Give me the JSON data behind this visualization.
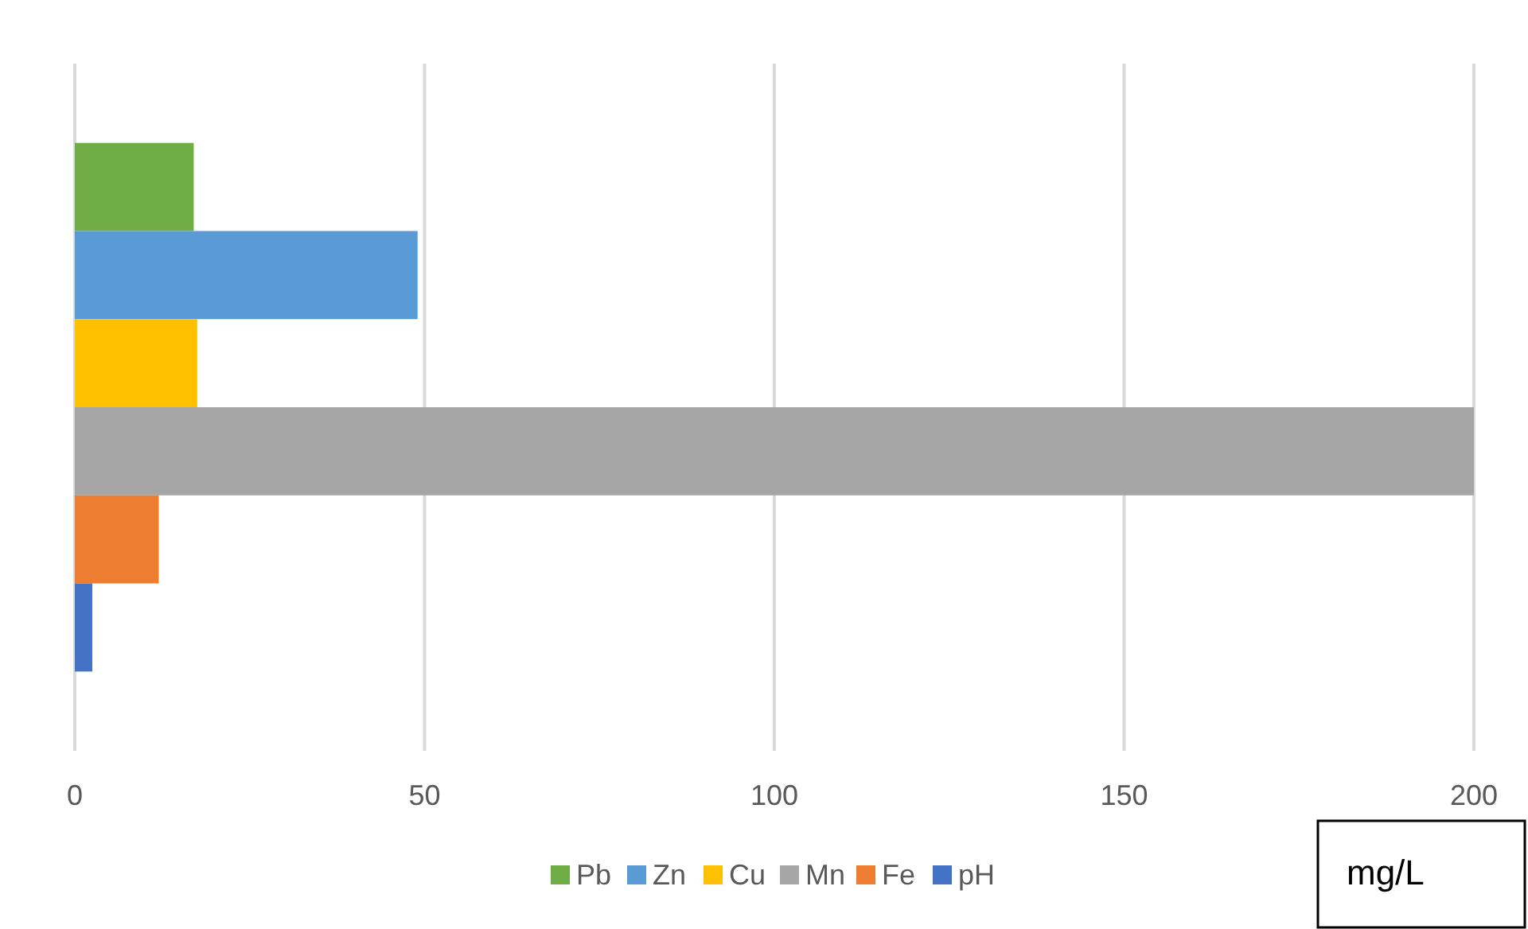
{
  "chart_data": {
    "type": "bar",
    "orientation": "horizontal",
    "categories": [
      null
    ],
    "series": [
      {
        "name": "Pb",
        "color": "#70ad47",
        "values": [
          17
        ]
      },
      {
        "name": "Zn",
        "color": "#5b9bd5",
        "values": [
          49
        ]
      },
      {
        "name": "Cu",
        "color": "#ffc000",
        "values": [
          17.5
        ]
      },
      {
        "name": "Mn",
        "color": "#a5a5a5",
        "values": [
          200
        ]
      },
      {
        "name": "Fe",
        "color": "#ed7d31",
        "values": [
          12
        ]
      },
      {
        "name": "pH",
        "color": "#4472c4",
        "values": [
          2.5
        ]
      }
    ],
    "xlim": [
      0,
      200
    ],
    "xticks": [
      0,
      50,
      100,
      150,
      200
    ],
    "grid": "x",
    "legend": "bottom",
    "annotations": [
      "mg/L"
    ]
  }
}
